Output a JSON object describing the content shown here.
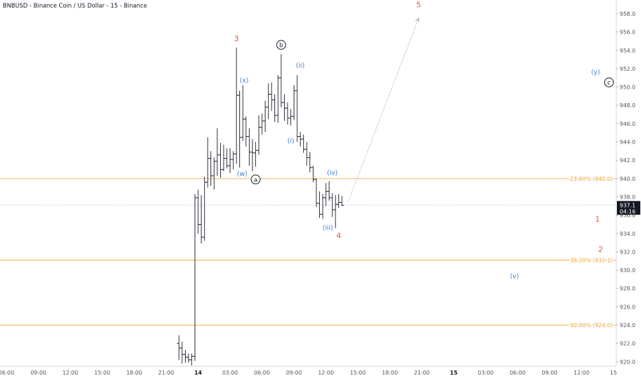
{
  "header": {
    "title": "BNBUSD - Binance Coin / US Dollar - 15 - Binance"
  },
  "colors": {
    "fib": "#f59d2a",
    "wave_red": "#e8543f",
    "wave_blue": "#3f7fe0",
    "candle": "#131722",
    "axis_text": "#555555",
    "price_tag_bg": "#131722",
    "price_tag_text": "#ffffff",
    "projection": "#9598a1"
  },
  "chart_data": {
    "type": "ohlc",
    "ylim": [
      919.5,
      959.5
    ],
    "xlim": [
      0,
      96
    ],
    "grid": false,
    "y_ticks": [
      920,
      922,
      924,
      926,
      928,
      930,
      932,
      934,
      936,
      938,
      940,
      942,
      944,
      946,
      948,
      950,
      952,
      954,
      956,
      958
    ],
    "y_tick_labels": [
      "920.0",
      "922.0",
      "924.0",
      "926.0",
      "928.0",
      "930.0",
      "932.0",
      "934.0",
      "936.0",
      "938.0",
      "940.0",
      "942.0",
      "944.0",
      "946.0",
      "948.0",
      "950.0",
      "952.0",
      "954.0",
      "956.0",
      "958.0"
    ],
    "x_ticks": [
      {
        "x": 1,
        "label": "06:00",
        "bold": false
      },
      {
        "x": 6,
        "label": "09:00",
        "bold": false
      },
      {
        "x": 11,
        "label": "12:00",
        "bold": false
      },
      {
        "x": 16,
        "label": "15:00",
        "bold": false
      },
      {
        "x": 21,
        "label": "18:00",
        "bold": false
      },
      {
        "x": 26,
        "label": "21:00",
        "bold": false
      },
      {
        "x": 31,
        "label": "14",
        "bold": true
      },
      {
        "x": 36,
        "label": "03:00",
        "bold": false
      },
      {
        "x": 41,
        "label": "06:00",
        "bold": false
      },
      {
        "x": 46,
        "label": "09:00",
        "bold": false
      },
      {
        "x": 51,
        "label": "12:00",
        "bold": false
      },
      {
        "x": 56,
        "label": "15:00",
        "bold": false
      },
      {
        "x": 61,
        "label": "18:00",
        "bold": false
      },
      {
        "x": 66,
        "label": "21:00",
        "bold": false
      },
      {
        "x": 71,
        "label": "15",
        "bold": true
      },
      {
        "x": 76,
        "label": "03:00",
        "bold": false
      },
      {
        "x": 81,
        "label": "06:00",
        "bold": false
      },
      {
        "x": 86,
        "label": "09:00",
        "bold": false
      },
      {
        "x": 91,
        "label": "12:00",
        "bold": false
      },
      {
        "x": 96,
        "label": "15",
        "bold": false
      }
    ],
    "candles": [
      [
        28.0,
        922.0,
        922.9,
        920.2,
        921.5
      ],
      [
        28.5,
        921.5,
        922.2,
        919.8,
        920.8
      ],
      [
        29.0,
        920.8,
        921.3,
        919.9,
        920.5
      ],
      [
        29.5,
        920.5,
        920.9,
        919.9,
        920.2
      ],
      [
        30.0,
        920.2,
        920.9,
        919.6,
        920.6
      ],
      [
        30.5,
        920.6,
        938.3,
        920.1,
        937.9
      ],
      [
        31.0,
        937.9,
        938.8,
        934.0,
        935.0
      ],
      [
        31.5,
        935.0,
        938.2,
        932.9,
        933.6
      ],
      [
        32.0,
        933.6,
        940.2,
        933.2,
        939.6
      ],
      [
        32.5,
        939.6,
        944.5,
        939.0,
        942.2
      ],
      [
        33.0,
        942.2,
        943.0,
        939.2,
        940.3
      ],
      [
        33.5,
        940.3,
        942.3,
        938.8,
        941.9
      ],
      [
        34.0,
        941.9,
        945.5,
        940.3,
        942.6
      ],
      [
        34.5,
        942.6,
        943.9,
        940.1,
        941.0
      ],
      [
        35.0,
        941.0,
        943.7,
        940.8,
        942.2
      ],
      [
        35.5,
        942.2,
        943.3,
        941.1,
        941.4
      ],
      [
        36.0,
        941.4,
        943.3,
        940.6,
        942.1
      ],
      [
        36.5,
        942.1,
        943.0,
        941.0,
        942.7
      ],
      [
        37.0,
        942.7,
        954.3,
        941.6,
        949.1
      ],
      [
        37.5,
        949.1,
        949.6,
        941.2,
        944.5
      ],
      [
        38.0,
        944.5,
        950.2,
        944.1,
        946.5
      ],
      [
        38.5,
        946.5,
        946.8,
        943.5,
        944.6
      ],
      [
        39.0,
        944.6,
        945.5,
        941.4,
        942.9
      ],
      [
        39.5,
        942.9,
        944.3,
        940.8,
        942.8
      ],
      [
        40.0,
        942.8,
        944.0,
        941.3,
        943.1
      ],
      [
        40.5,
        943.1,
        946.9,
        942.6,
        945.6
      ],
      [
        41.0,
        945.6,
        947.1,
        944.8,
        946.3
      ],
      [
        41.5,
        946.3,
        948.5,
        945.1,
        947.8
      ],
      [
        42.0,
        947.8,
        950.4,
        946.5,
        949.2
      ],
      [
        42.5,
        949.2,
        950.5,
        947.4,
        948.6
      ],
      [
        43.0,
        948.6,
        949.2,
        946.2,
        946.9
      ],
      [
        43.5,
        946.9,
        951.3,
        946.1,
        951.0
      ],
      [
        44.0,
        951.0,
        953.6,
        947.8,
        948.3
      ],
      [
        44.5,
        948.3,
        949.2,
        946.3,
        947.7
      ],
      [
        45.0,
        947.7,
        948.3,
        945.9,
        946.6
      ],
      [
        45.5,
        946.6,
        947.6,
        945.8,
        946.8
      ],
      [
        46.0,
        946.8,
        950.2,
        946.4,
        949.6
      ],
      [
        46.5,
        949.6,
        951.3,
        944.0,
        944.6
      ],
      [
        47.0,
        944.6,
        945.1,
        943.5,
        944.3
      ],
      [
        47.5,
        944.3,
        944.8,
        942.8,
        943.2
      ],
      [
        48.0,
        943.2,
        944.0,
        941.4,
        942.3
      ],
      [
        48.5,
        942.3,
        942.9,
        940.7,
        941.2
      ],
      [
        49.0,
        941.2,
        941.4,
        939.6,
        939.9
      ],
      [
        49.5,
        939.9,
        940.0,
        936.9,
        937.3
      ],
      [
        50.0,
        937.3,
        938.6,
        935.7,
        936.1
      ],
      [
        50.5,
        936.1,
        938.3,
        935.6,
        937.9
      ],
      [
        51.0,
        937.9,
        939.5,
        937.0,
        938.6
      ],
      [
        51.5,
        938.6,
        939.7,
        937.6,
        937.9
      ],
      [
        52.0,
        937.9,
        938.4,
        935.8,
        936.6
      ],
      [
        52.5,
        936.6,
        938.2,
        934.6,
        937.2
      ],
      [
        53.0,
        937.2,
        938.3,
        936.8,
        937.4
      ],
      [
        53.5,
        937.4,
        938.1,
        937.0,
        937.1
      ]
    ],
    "fib_levels": [
      {
        "value": 940.0,
        "label": "23.60% (940.0)"
      },
      {
        "value": 931.1,
        "label": "38.20% (931.1)"
      },
      {
        "value": 924.0,
        "label": "50.00% (924.0)"
      }
    ],
    "current_price": {
      "value": 937.1,
      "label": "937.1",
      "countdown": "04:16"
    },
    "projection": {
      "from": [
        54.5,
        937.5
      ],
      "to": [
        65.5,
        957.5
      ]
    },
    "wave_labels": [
      {
        "text": "3",
        "x": 37.0,
        "y": 955.3,
        "color": "red",
        "circled": false
      },
      {
        "text": "5",
        "x": 65.5,
        "y": 959.0,
        "color": "red",
        "circled": false
      },
      {
        "text": "4",
        "x": 53.0,
        "y": 933.8,
        "color": "red",
        "circled": false
      },
      {
        "text": "1",
        "x": 93.5,
        "y": 935.6,
        "color": "red",
        "circled": false
      },
      {
        "text": "2",
        "x": 94.0,
        "y": 932.3,
        "color": "red",
        "circled": false
      },
      {
        "text": "b",
        "x": 44.0,
        "y": 954.6,
        "color": "dark",
        "circled": true
      },
      {
        "text": "a",
        "x": 40.0,
        "y": 939.9,
        "color": "dark",
        "circled": true
      },
      {
        "text": "c",
        "x": 95.3,
        "y": 950.5,
        "color": "dark",
        "circled": true
      },
      {
        "text": "(x)",
        "x": 38.2,
        "y": 950.8,
        "color": "blue",
        "circled": false
      },
      {
        "text": "(ii)",
        "x": 47.0,
        "y": 952.4,
        "color": "blue",
        "circled": false
      },
      {
        "text": "(i)",
        "x": 45.5,
        "y": 944.2,
        "color": "blue",
        "circled": false
      },
      {
        "text": "(w)",
        "x": 37.9,
        "y": 940.6,
        "color": "blue",
        "circled": false
      },
      {
        "text": "(iv)",
        "x": 52.0,
        "y": 940.7,
        "color": "blue",
        "circled": false
      },
      {
        "text": "(iii)",
        "x": 51.3,
        "y": 934.7,
        "color": "blue",
        "circled": false
      },
      {
        "text": "(y)",
        "x": 93.2,
        "y": 951.7,
        "color": "blue",
        "circled": false
      },
      {
        "text": "(v)",
        "x": 80.5,
        "y": 929.4,
        "color": "blue",
        "circled": false
      }
    ]
  }
}
